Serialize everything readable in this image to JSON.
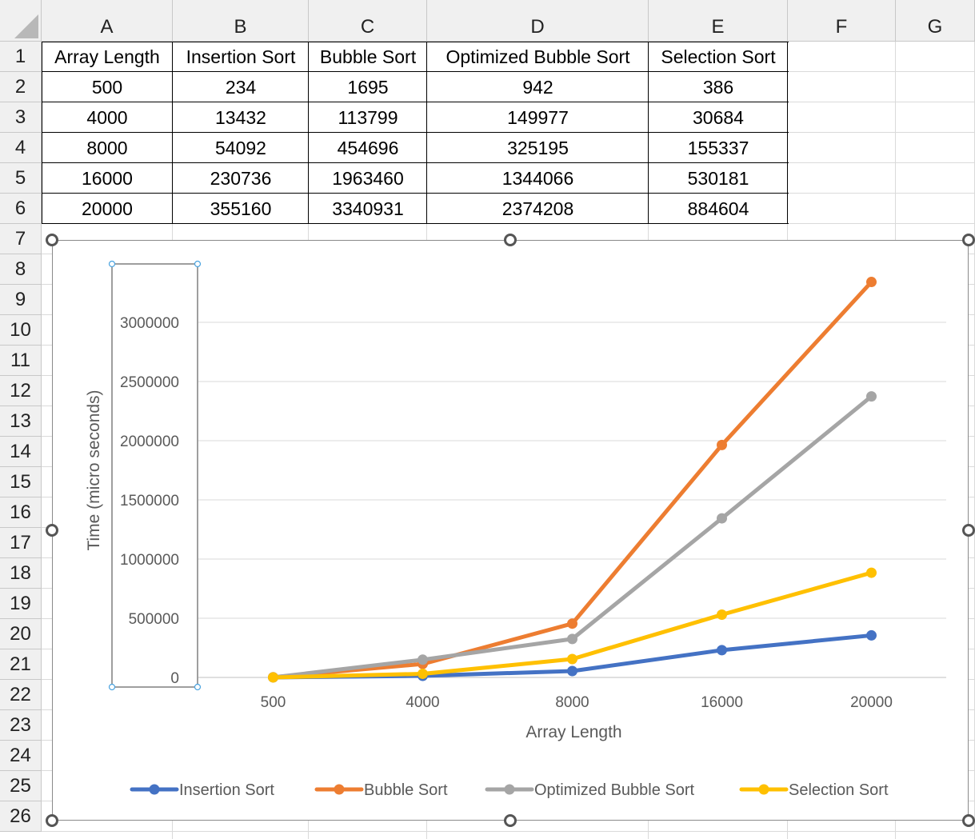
{
  "spreadsheet": {
    "column_headers": [
      "A",
      "B",
      "C",
      "D",
      "E",
      "F",
      "G"
    ],
    "row_headers": [
      "1",
      "2",
      "3",
      "4",
      "5",
      "6",
      "7",
      "8",
      "9",
      "10",
      "11",
      "12",
      "13",
      "14",
      "15",
      "16",
      "17",
      "18",
      "19",
      "20",
      "21",
      "22",
      "23",
      "24",
      "25",
      "26"
    ],
    "table": {
      "headers": [
        "Array Length",
        "Insertion Sort",
        "Bubble Sort",
        "Optimized Bubble Sort",
        "Selection Sort"
      ],
      "rows": [
        [
          "500",
          "234",
          "1695",
          "942",
          "386"
        ],
        [
          "4000",
          "13432",
          "113799",
          "149977",
          "30684"
        ],
        [
          "8000",
          "54092",
          "454696",
          "325195",
          "155337"
        ],
        [
          "16000",
          "230736",
          "1963460",
          "1344066",
          "530181"
        ],
        [
          "20000",
          "355160",
          "3340931",
          "2374208",
          "884604"
        ]
      ]
    }
  },
  "chart_data": {
    "type": "line",
    "title": "",
    "xlabel": "Array Length",
    "ylabel": "Time (micro seconds)",
    "categories": [
      "500",
      "4000",
      "8000",
      "16000",
      "20000"
    ],
    "ylim": [
      0,
      3500000
    ],
    "yticks": [
      0,
      500000,
      1000000,
      1500000,
      2000000,
      2500000,
      3000000
    ],
    "ytick_labels": [
      "0",
      "500000",
      "1000000",
      "1500000",
      "2000000",
      "2500000",
      "3000000"
    ],
    "grid": true,
    "legend_position": "bottom",
    "series": [
      {
        "name": "Insertion Sort",
        "color": "#4472C4",
        "values": [
          234,
          13432,
          54092,
          230736,
          355160
        ]
      },
      {
        "name": "Bubble Sort",
        "color": "#ED7D31",
        "values": [
          1695,
          113799,
          454696,
          1963460,
          3340931
        ]
      },
      {
        "name": "Optimized Bubble Sort",
        "color": "#A5A5A5",
        "values": [
          942,
          149977,
          325195,
          1344066,
          2374208
        ]
      },
      {
        "name": "Selection Sort",
        "color": "#FFC000",
        "values": [
          386,
          30684,
          155337,
          530181,
          884604
        ]
      }
    ]
  }
}
